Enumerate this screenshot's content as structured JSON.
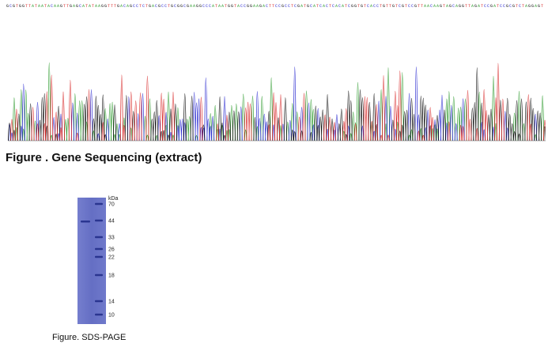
{
  "sequencing": {
    "caption": "Figure . Gene Sequencing (extract)",
    "trace_colors": {
      "A": "#2c9a2c",
      "C": "#2a2ad0",
      "G": "#111111",
      "T": "#d82a2a"
    }
  },
  "sds_page": {
    "caption": "Figure. SDS-PAGE",
    "unit_label": "kDa",
    "marker_labels": [
      "70",
      "44",
      "33",
      "26",
      "22",
      "18",
      "14",
      "10"
    ],
    "gel_color": "#6a74c8",
    "band_color": "#2a3590"
  }
}
